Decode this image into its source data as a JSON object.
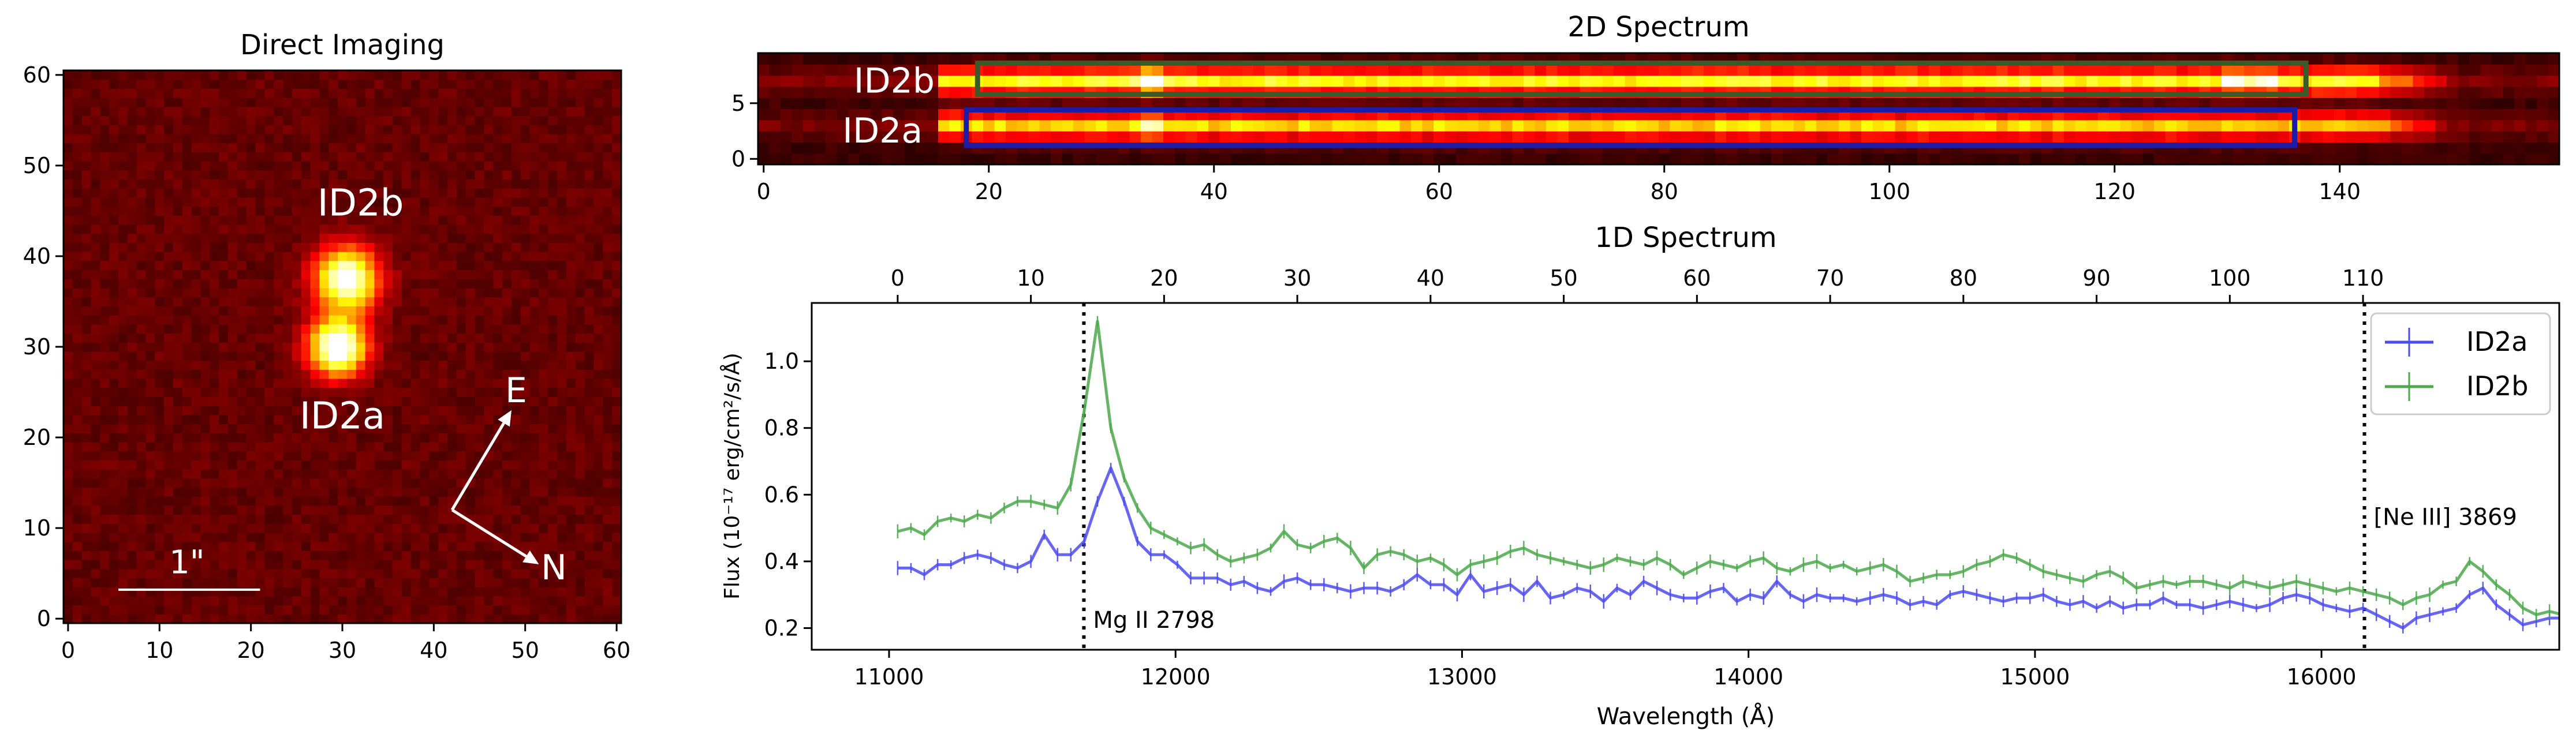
{
  "chart_data": [
    {
      "type": "heatmap",
      "title": "Direct Imaging",
      "x_ticks": [
        "0",
        "10",
        "20",
        "30",
        "40",
        "50",
        "60"
      ],
      "y_ticks": [
        "0",
        "10",
        "20",
        "30",
        "40",
        "50",
        "60"
      ],
      "xlim": [
        -0.5,
        60.5
      ],
      "ylim": [
        -0.5,
        60.5
      ],
      "sources": [
        {
          "name": "ID2b",
          "x": 30.5,
          "y": 37.5,
          "peak": 0.95,
          "sigma": 2.4
        },
        {
          "name": "ID2a",
          "x": 29.5,
          "y": 30.0,
          "peak": 1.0,
          "sigma": 2.2
        }
      ],
      "labels": [
        {
          "text": "ID2b",
          "x": 32,
          "y": 44.5
        },
        {
          "text": "ID2a",
          "x": 30,
          "y": 21
        }
      ],
      "compass": {
        "origin": [
          42,
          12
        ],
        "east": {
          "label": "E",
          "tip": [
            48.5,
            23
          ]
        },
        "north": {
          "label": "N",
          "tip": [
            51.5,
            6
          ]
        }
      },
      "scalebar": {
        "label": "1\"",
        "x": [
          5.5,
          21
        ],
        "y": 3.2,
        "label_x": 13,
        "label_y": 5
      }
    },
    {
      "type": "heatmap",
      "title": "2D Spectrum",
      "x_ticks": [
        "0",
        "20",
        "40",
        "60",
        "80",
        "100",
        "120",
        "140"
      ],
      "y_ticks": [
        "0",
        "5"
      ],
      "xlim": [
        -0.5,
        159.5
      ],
      "ylim": [
        -0.5,
        9.5
      ],
      "traces": [
        {
          "name": "ID2b",
          "row": 7,
          "box_color": "#3a5a2a",
          "box_x": [
            19,
            137
          ],
          "box_y": [
            5.8,
            8.6
          ],
          "label_x": 8,
          "label_y": 7
        },
        {
          "name": "ID2a",
          "row": 3,
          "box_color": "#1c1ca6",
          "box_x": [
            18,
            136
          ],
          "box_y": [
            1.2,
            4.4
          ],
          "label_x": 7,
          "label_y": 2.5
        }
      ]
    },
    {
      "type": "line",
      "title": "1D Spectrum",
      "xlabel": "Wavelength (Å)",
      "ylabel": "Flux (10⁻¹⁷ erg/cm²/s/Å)",
      "xlim": [
        10730,
        16830
      ],
      "ylim": [
        0.135,
        1.175
      ],
      "x_ticks": [
        "11000",
        "12000",
        "13000",
        "14000",
        "15000",
        "16000"
      ],
      "y_ticks": [
        "0.2",
        "0.4",
        "0.6",
        "0.8",
        "1.0"
      ],
      "top_axis": {
        "ticks": [
          "0",
          "10",
          "20",
          "30",
          "40",
          "50",
          "60",
          "70",
          "80",
          "90",
          "100",
          "110"
        ],
        "start_wavelength": 11030,
        "step": 46.5
      },
      "x_start": 11030,
      "x_step": 46.5,
      "series": [
        {
          "name": "ID2a",
          "color": "#4b4bf0",
          "values": [
            0.38,
            0.38,
            0.36,
            0.39,
            0.39,
            0.41,
            0.42,
            0.41,
            0.39,
            0.38,
            0.4,
            0.48,
            0.42,
            0.42,
            0.46,
            0.58,
            0.68,
            0.58,
            0.46,
            0.42,
            0.42,
            0.39,
            0.35,
            0.35,
            0.35,
            0.33,
            0.34,
            0.32,
            0.31,
            0.34,
            0.35,
            0.33,
            0.33,
            0.32,
            0.31,
            0.32,
            0.32,
            0.31,
            0.33,
            0.36,
            0.33,
            0.33,
            0.3,
            0.36,
            0.31,
            0.32,
            0.33,
            0.3,
            0.34,
            0.29,
            0.3,
            0.32,
            0.31,
            0.28,
            0.32,
            0.3,
            0.34,
            0.32,
            0.3,
            0.29,
            0.29,
            0.31,
            0.32,
            0.28,
            0.3,
            0.29,
            0.34,
            0.3,
            0.28,
            0.3,
            0.29,
            0.29,
            0.28,
            0.29,
            0.3,
            0.29,
            0.27,
            0.28,
            0.27,
            0.3,
            0.31,
            0.3,
            0.29,
            0.28,
            0.29,
            0.29,
            0.3,
            0.28,
            0.27,
            0.28,
            0.26,
            0.28,
            0.26,
            0.27,
            0.27,
            0.29,
            0.27,
            0.27,
            0.26,
            0.27,
            0.28,
            0.27,
            0.26,
            0.27,
            0.29,
            0.3,
            0.29,
            0.27,
            0.26,
            0.25,
            0.26,
            0.24,
            0.22,
            0.2,
            0.23,
            0.24,
            0.25,
            0.26,
            0.3,
            0.32,
            0.27,
            0.24,
            0.21,
            0.22,
            0.23,
            0.23
          ]
        },
        {
          "name": "ID2b",
          "color": "#4ba84b",
          "values": [
            0.49,
            0.5,
            0.48,
            0.52,
            0.53,
            0.52,
            0.54,
            0.53,
            0.56,
            0.58,
            0.58,
            0.57,
            0.56,
            0.63,
            0.85,
            1.12,
            0.8,
            0.65,
            0.56,
            0.5,
            0.48,
            0.46,
            0.44,
            0.45,
            0.42,
            0.4,
            0.41,
            0.42,
            0.44,
            0.49,
            0.45,
            0.44,
            0.46,
            0.47,
            0.44,
            0.38,
            0.42,
            0.43,
            0.42,
            0.4,
            0.41,
            0.39,
            0.36,
            0.39,
            0.4,
            0.41,
            0.43,
            0.44,
            0.42,
            0.41,
            0.4,
            0.39,
            0.38,
            0.39,
            0.41,
            0.4,
            0.39,
            0.41,
            0.39,
            0.36,
            0.38,
            0.4,
            0.39,
            0.38,
            0.4,
            0.41,
            0.38,
            0.37,
            0.39,
            0.4,
            0.38,
            0.39,
            0.37,
            0.38,
            0.39,
            0.37,
            0.34,
            0.35,
            0.36,
            0.36,
            0.37,
            0.39,
            0.4,
            0.42,
            0.41,
            0.39,
            0.37,
            0.36,
            0.35,
            0.34,
            0.36,
            0.37,
            0.35,
            0.32,
            0.33,
            0.34,
            0.33,
            0.34,
            0.34,
            0.33,
            0.32,
            0.34,
            0.33,
            0.32,
            0.33,
            0.34,
            0.33,
            0.32,
            0.31,
            0.32,
            0.31,
            0.3,
            0.29,
            0.27,
            0.29,
            0.3,
            0.33,
            0.34,
            0.4,
            0.37,
            0.33,
            0.3,
            0.26,
            0.24,
            0.25,
            0.24
          ]
        }
      ],
      "legend": {
        "position": "top-right",
        "entries": [
          "ID2a",
          "ID2b"
        ]
      },
      "lines": [
        {
          "wavelength": 11680,
          "label": "Mg II 2798",
          "label_side": "bottom-right"
        },
        {
          "wavelength": 16150,
          "label": "[Ne III] 3869",
          "label_side": "middle-right"
        }
      ]
    }
  ]
}
